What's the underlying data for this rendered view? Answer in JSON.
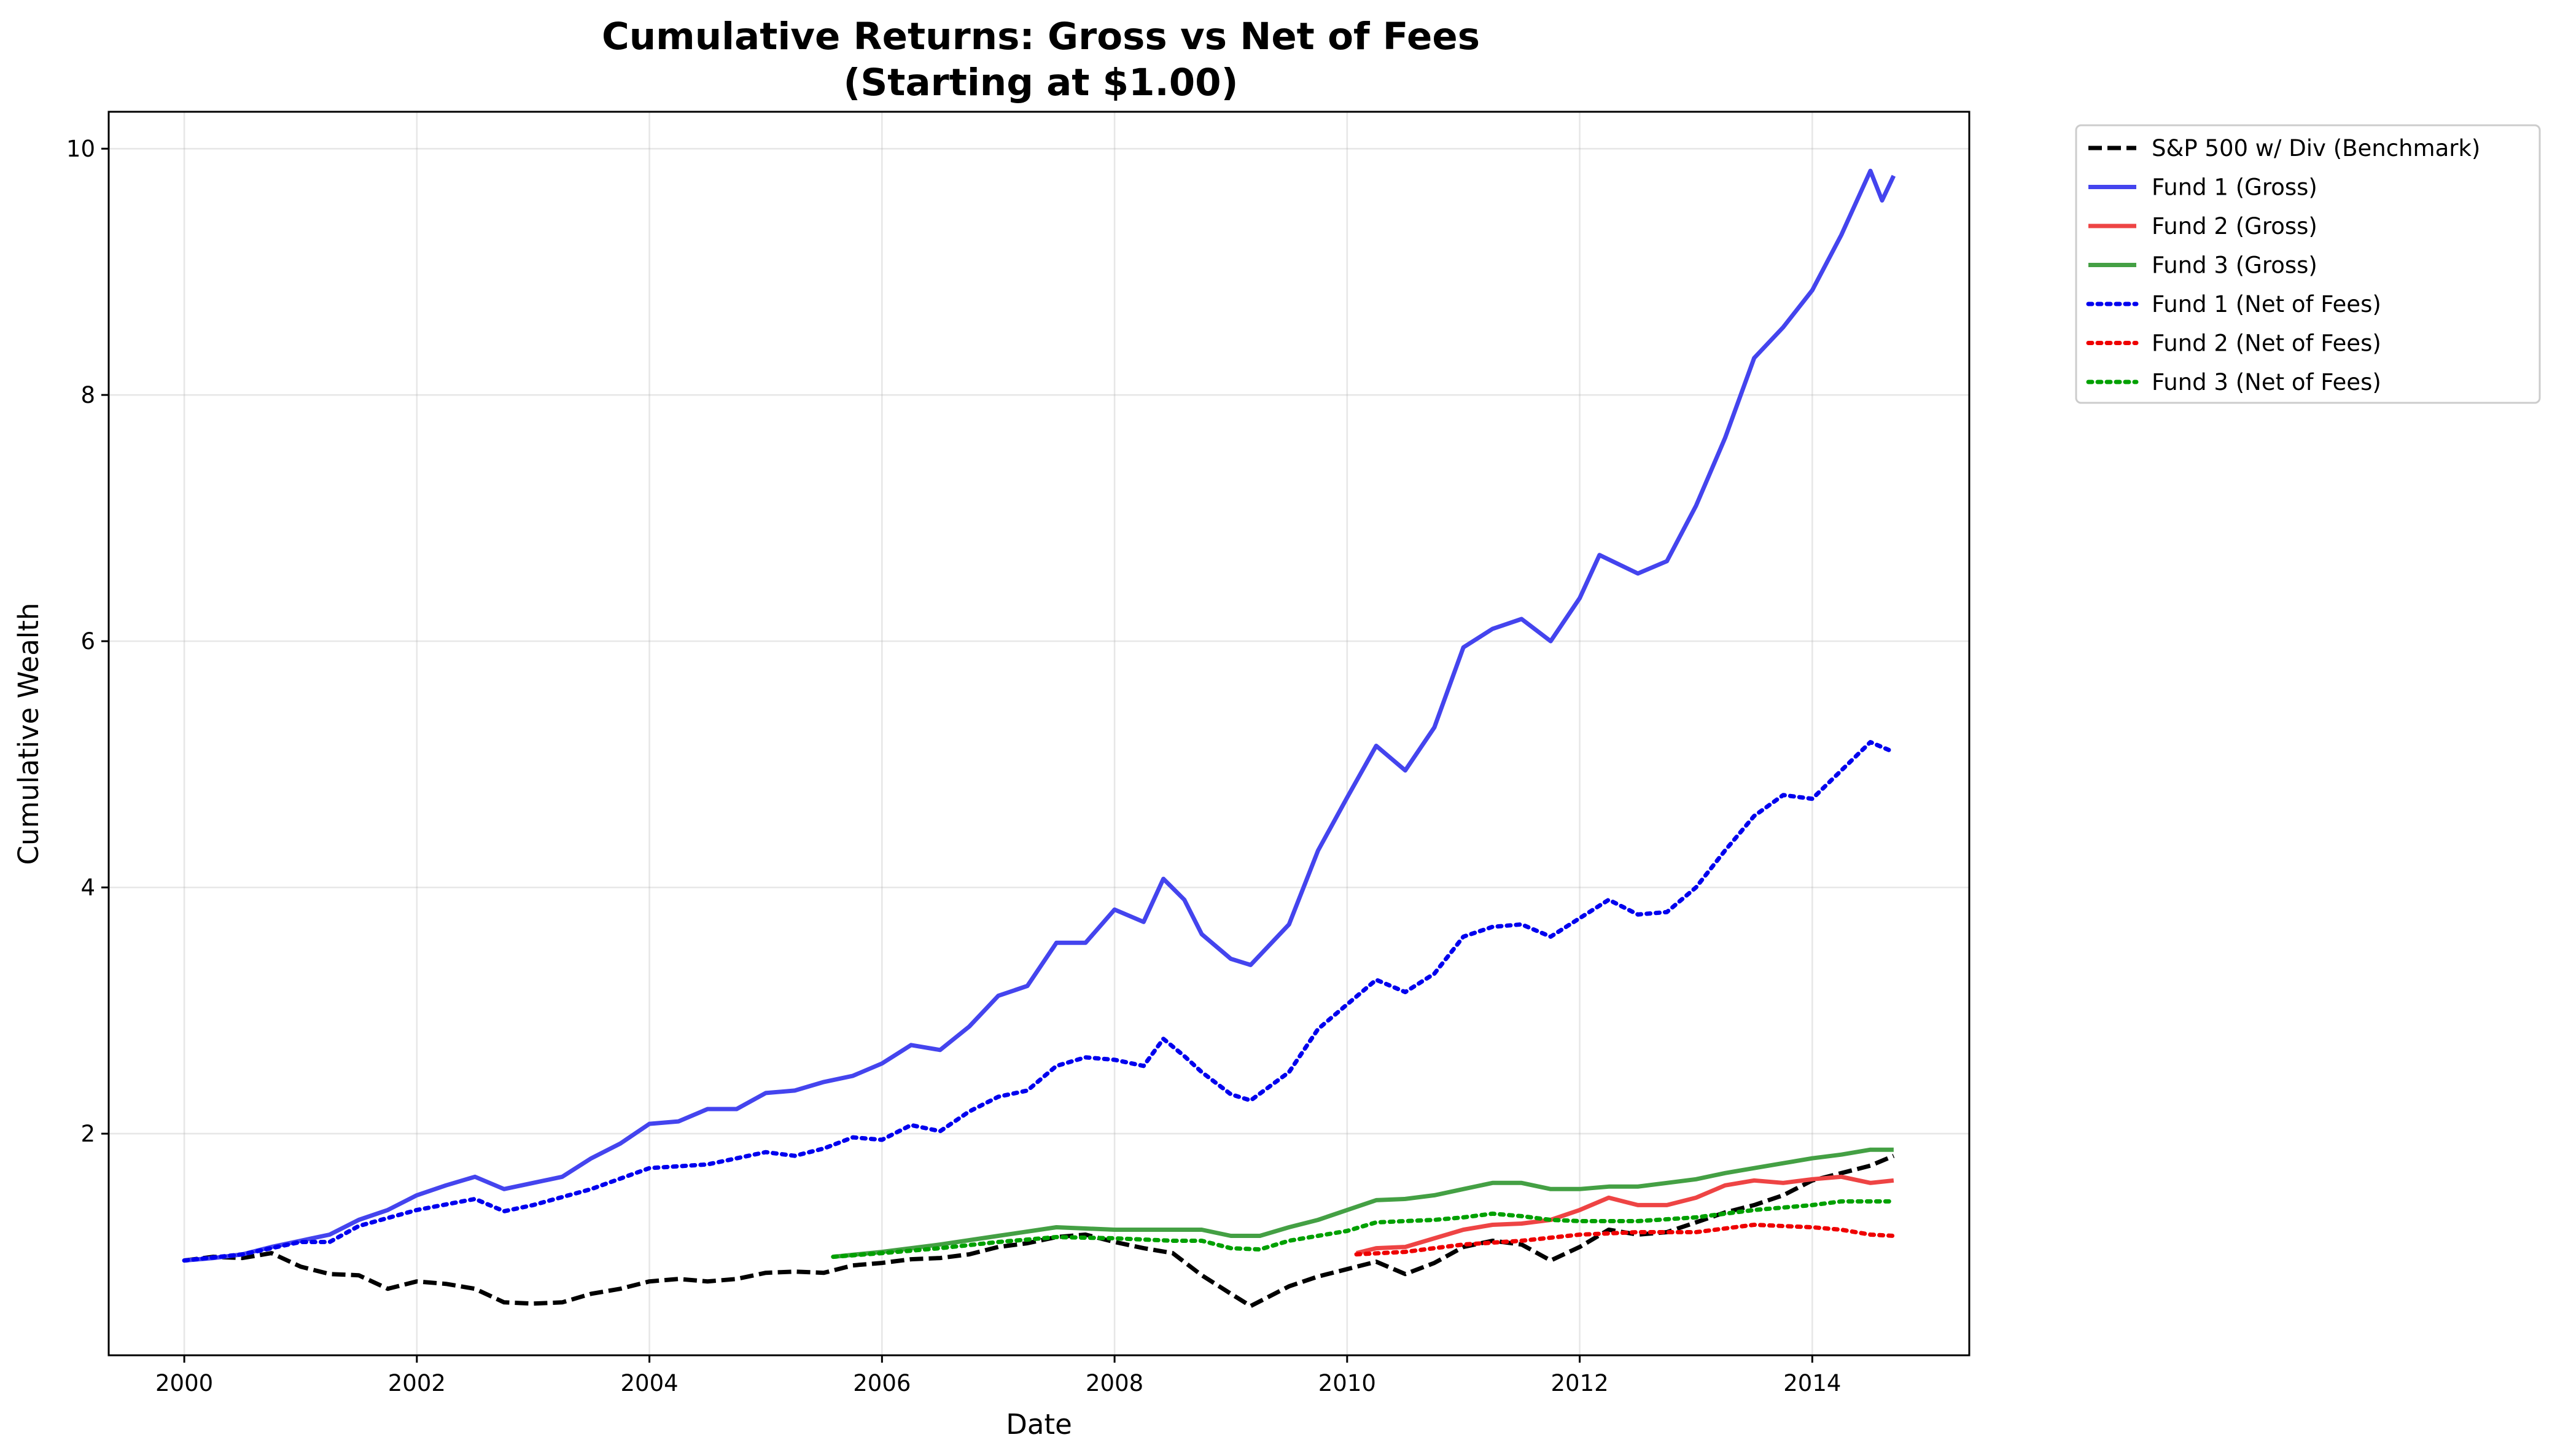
{
  "chart_data": {
    "type": "line",
    "title": [
      "Cumulative Returns: Gross vs Net of Fees",
      "(Starting at $1.00)"
    ],
    "xlabel": "Date",
    "ylabel": "Cumulative Wealth",
    "xlim": [
      1999.35,
      2015.35
    ],
    "ylim": [
      0.2,
      10.3
    ],
    "xticks": [
      {
        "value": 2000,
        "label": "2000"
      },
      {
        "value": 2002,
        "label": "2002"
      },
      {
        "value": 2004,
        "label": "2004"
      },
      {
        "value": 2006,
        "label": "2006"
      },
      {
        "value": 2008,
        "label": "2008"
      },
      {
        "value": 2010,
        "label": "2010"
      },
      {
        "value": 2012,
        "label": "2012"
      },
      {
        "value": 2014,
        "label": "2014"
      }
    ],
    "yticks": [
      {
        "value": 2,
        "label": "2"
      },
      {
        "value": 4,
        "label": "4"
      },
      {
        "value": 6,
        "label": "6"
      },
      {
        "value": 8,
        "label": "8"
      },
      {
        "value": 10,
        "label": "10"
      }
    ],
    "grid": true,
    "legend_position": "outside-top-right",
    "series": [
      {
        "name": "S&P 500 w/ Div (Benchmark)",
        "color": "#000000",
        "style": "dashed",
        "points": [
          [
            2000.0,
            0.97
          ],
          [
            2000.25,
            1.0
          ],
          [
            2000.5,
            0.99
          ],
          [
            2000.75,
            1.03
          ],
          [
            2001.0,
            0.92
          ],
          [
            2001.25,
            0.86
          ],
          [
            2001.5,
            0.85
          ],
          [
            2001.75,
            0.74
          ],
          [
            2002.0,
            0.8
          ],
          [
            2002.25,
            0.78
          ],
          [
            2002.5,
            0.74
          ],
          [
            2002.75,
            0.63
          ],
          [
            2003.0,
            0.62
          ],
          [
            2003.25,
            0.63
          ],
          [
            2003.5,
            0.7
          ],
          [
            2003.75,
            0.74
          ],
          [
            2004.0,
            0.8
          ],
          [
            2004.25,
            0.82
          ],
          [
            2004.5,
            0.8
          ],
          [
            2004.75,
            0.82
          ],
          [
            2005.0,
            0.87
          ],
          [
            2005.25,
            0.88
          ],
          [
            2005.5,
            0.87
          ],
          [
            2005.75,
            0.93
          ],
          [
            2006.0,
            0.95
          ],
          [
            2006.25,
            0.98
          ],
          [
            2006.5,
            0.99
          ],
          [
            2006.75,
            1.02
          ],
          [
            2007.0,
            1.08
          ],
          [
            2007.25,
            1.11
          ],
          [
            2007.5,
            1.16
          ],
          [
            2007.75,
            1.18
          ],
          [
            2008.0,
            1.12
          ],
          [
            2008.25,
            1.07
          ],
          [
            2008.5,
            1.03
          ],
          [
            2008.75,
            0.85
          ],
          [
            2009.0,
            0.7
          ],
          [
            2009.17,
            0.6
          ],
          [
            2009.5,
            0.76
          ],
          [
            2009.75,
            0.84
          ],
          [
            2010.0,
            0.9
          ],
          [
            2010.25,
            0.96
          ],
          [
            2010.5,
            0.86
          ],
          [
            2010.75,
            0.95
          ],
          [
            2011.0,
            1.08
          ],
          [
            2011.25,
            1.13
          ],
          [
            2011.5,
            1.1
          ],
          [
            2011.75,
            0.97
          ],
          [
            2012.0,
            1.08
          ],
          [
            2012.25,
            1.22
          ],
          [
            2012.5,
            1.18
          ],
          [
            2012.75,
            1.2
          ],
          [
            2013.0,
            1.28
          ],
          [
            2013.25,
            1.36
          ],
          [
            2013.5,
            1.42
          ],
          [
            2013.75,
            1.5
          ],
          [
            2014.0,
            1.62
          ],
          [
            2014.25,
            1.68
          ],
          [
            2014.5,
            1.74
          ],
          [
            2014.7,
            1.82
          ]
        ]
      },
      {
        "name": "Fund 1 (Gross)",
        "color": "#4444ee",
        "style": "solid",
        "points": [
          [
            2000.0,
            0.97
          ],
          [
            2000.25,
            0.99
          ],
          [
            2000.5,
            1.02
          ],
          [
            2000.75,
            1.08
          ],
          [
            2001.0,
            1.13
          ],
          [
            2001.25,
            1.18
          ],
          [
            2001.5,
            1.3
          ],
          [
            2001.75,
            1.38
          ],
          [
            2002.0,
            1.5
          ],
          [
            2002.25,
            1.58
          ],
          [
            2002.5,
            1.65
          ],
          [
            2002.75,
            1.55
          ],
          [
            2003.0,
            1.6
          ],
          [
            2003.25,
            1.65
          ],
          [
            2003.5,
            1.8
          ],
          [
            2003.75,
            1.92
          ],
          [
            2004.0,
            2.08
          ],
          [
            2004.25,
            2.1
          ],
          [
            2004.5,
            2.2
          ],
          [
            2004.75,
            2.2
          ],
          [
            2005.0,
            2.33
          ],
          [
            2005.25,
            2.35
          ],
          [
            2005.5,
            2.42
          ],
          [
            2005.75,
            2.47
          ],
          [
            2006.0,
            2.57
          ],
          [
            2006.25,
            2.72
          ],
          [
            2006.5,
            2.68
          ],
          [
            2006.75,
            2.87
          ],
          [
            2007.0,
            3.12
          ],
          [
            2007.25,
            3.2
          ],
          [
            2007.5,
            3.55
          ],
          [
            2007.75,
            3.55
          ],
          [
            2008.0,
            3.82
          ],
          [
            2008.25,
            3.72
          ],
          [
            2008.42,
            4.07
          ],
          [
            2008.6,
            3.9
          ],
          [
            2008.75,
            3.62
          ],
          [
            2009.0,
            3.42
          ],
          [
            2009.17,
            3.37
          ],
          [
            2009.5,
            3.7
          ],
          [
            2009.75,
            4.3
          ],
          [
            2010.0,
            4.73
          ],
          [
            2010.25,
            5.15
          ],
          [
            2010.5,
            4.95
          ],
          [
            2010.75,
            5.3
          ],
          [
            2011.0,
            5.95
          ],
          [
            2011.25,
            6.1
          ],
          [
            2011.5,
            6.18
          ],
          [
            2011.75,
            6.0
          ],
          [
            2012.0,
            6.35
          ],
          [
            2012.17,
            6.7
          ],
          [
            2012.5,
            6.55
          ],
          [
            2012.75,
            6.65
          ],
          [
            2013.0,
            7.1
          ],
          [
            2013.25,
            7.65
          ],
          [
            2013.5,
            8.3
          ],
          [
            2013.75,
            8.55
          ],
          [
            2014.0,
            8.85
          ],
          [
            2014.25,
            9.3
          ],
          [
            2014.5,
            9.82
          ],
          [
            2014.6,
            9.58
          ],
          [
            2014.7,
            9.78
          ]
        ]
      },
      {
        "name": "Fund 2 (Gross)",
        "color": "#ee4444",
        "style": "solid",
        "points": [
          [
            2010.08,
            1.03
          ],
          [
            2010.25,
            1.07
          ],
          [
            2010.5,
            1.08
          ],
          [
            2010.75,
            1.15
          ],
          [
            2011.0,
            1.22
          ],
          [
            2011.25,
            1.26
          ],
          [
            2011.5,
            1.27
          ],
          [
            2011.75,
            1.3
          ],
          [
            2012.0,
            1.38
          ],
          [
            2012.25,
            1.48
          ],
          [
            2012.5,
            1.42
          ],
          [
            2012.75,
            1.42
          ],
          [
            2013.0,
            1.48
          ],
          [
            2013.25,
            1.58
          ],
          [
            2013.5,
            1.62
          ],
          [
            2013.75,
            1.6
          ],
          [
            2014.0,
            1.63
          ],
          [
            2014.25,
            1.65
          ],
          [
            2014.5,
            1.6
          ],
          [
            2014.7,
            1.62
          ]
        ]
      },
      {
        "name": "Fund 3 (Gross)",
        "color": "#44a044",
        "style": "solid",
        "points": [
          [
            2005.58,
            1.0
          ],
          [
            2006.0,
            1.04
          ],
          [
            2006.5,
            1.1
          ],
          [
            2007.0,
            1.17
          ],
          [
            2007.5,
            1.24
          ],
          [
            2008.0,
            1.22
          ],
          [
            2008.5,
            1.22
          ],
          [
            2008.75,
            1.22
          ],
          [
            2009.0,
            1.17
          ],
          [
            2009.25,
            1.17
          ],
          [
            2009.5,
            1.24
          ],
          [
            2009.75,
            1.3
          ],
          [
            2010.0,
            1.38
          ],
          [
            2010.25,
            1.46
          ],
          [
            2010.5,
            1.47
          ],
          [
            2010.75,
            1.5
          ],
          [
            2011.0,
            1.55
          ],
          [
            2011.25,
            1.6
          ],
          [
            2011.5,
            1.6
          ],
          [
            2011.75,
            1.55
          ],
          [
            2012.0,
            1.55
          ],
          [
            2012.25,
            1.57
          ],
          [
            2012.5,
            1.57
          ],
          [
            2012.75,
            1.6
          ],
          [
            2013.0,
            1.63
          ],
          [
            2013.25,
            1.68
          ],
          [
            2013.5,
            1.72
          ],
          [
            2013.75,
            1.76
          ],
          [
            2014.0,
            1.8
          ],
          [
            2014.25,
            1.83
          ],
          [
            2014.5,
            1.87
          ],
          [
            2014.7,
            1.87
          ]
        ]
      },
      {
        "name": "Fund 1 (Net of Fees)",
        "color": "#0000ee",
        "style": "dotted",
        "points": [
          [
            2000.0,
            0.97
          ],
          [
            2000.5,
            1.02
          ],
          [
            2001.0,
            1.12
          ],
          [
            2001.25,
            1.12
          ],
          [
            2001.5,
            1.25
          ],
          [
            2002.0,
            1.38
          ],
          [
            2002.5,
            1.47
          ],
          [
            2002.75,
            1.37
          ],
          [
            2003.0,
            1.42
          ],
          [
            2003.5,
            1.55
          ],
          [
            2004.0,
            1.72
          ],
          [
            2004.5,
            1.75
          ],
          [
            2005.0,
            1.85
          ],
          [
            2005.25,
            1.82
          ],
          [
            2005.5,
            1.88
          ],
          [
            2005.75,
            1.97
          ],
          [
            2006.0,
            1.95
          ],
          [
            2006.25,
            2.07
          ],
          [
            2006.5,
            2.02
          ],
          [
            2006.75,
            2.18
          ],
          [
            2007.0,
            2.3
          ],
          [
            2007.25,
            2.35
          ],
          [
            2007.5,
            2.55
          ],
          [
            2007.75,
            2.62
          ],
          [
            2008.0,
            2.6
          ],
          [
            2008.25,
            2.55
          ],
          [
            2008.42,
            2.77
          ],
          [
            2008.6,
            2.63
          ],
          [
            2008.75,
            2.5
          ],
          [
            2009.0,
            2.32
          ],
          [
            2009.17,
            2.27
          ],
          [
            2009.5,
            2.5
          ],
          [
            2009.75,
            2.85
          ],
          [
            2010.0,
            3.05
          ],
          [
            2010.25,
            3.25
          ],
          [
            2010.5,
            3.15
          ],
          [
            2010.75,
            3.3
          ],
          [
            2011.0,
            3.6
          ],
          [
            2011.25,
            3.68
          ],
          [
            2011.5,
            3.7
          ],
          [
            2011.75,
            3.6
          ],
          [
            2012.0,
            3.75
          ],
          [
            2012.25,
            3.9
          ],
          [
            2012.5,
            3.78
          ],
          [
            2012.75,
            3.8
          ],
          [
            2013.0,
            4.0
          ],
          [
            2013.25,
            4.3
          ],
          [
            2013.5,
            4.58
          ],
          [
            2013.75,
            4.75
          ],
          [
            2014.0,
            4.72
          ],
          [
            2014.25,
            4.95
          ],
          [
            2014.5,
            5.18
          ],
          [
            2014.7,
            5.1
          ]
        ]
      },
      {
        "name": "Fund 2 (Net of Fees)",
        "color": "#ee0000",
        "style": "dotted",
        "points": [
          [
            2010.08,
            1.02
          ],
          [
            2010.5,
            1.04
          ],
          [
            2011.0,
            1.1
          ],
          [
            2011.5,
            1.13
          ],
          [
            2012.0,
            1.18
          ],
          [
            2012.5,
            1.2
          ],
          [
            2013.0,
            1.2
          ],
          [
            2013.5,
            1.26
          ],
          [
            2013.75,
            1.25
          ],
          [
            2014.0,
            1.24
          ],
          [
            2014.25,
            1.22
          ],
          [
            2014.5,
            1.18
          ],
          [
            2014.7,
            1.17
          ]
        ]
      },
      {
        "name": "Fund 3 (Net of Fees)",
        "color": "#00a000",
        "style": "dotted",
        "points": [
          [
            2005.58,
            1.0
          ],
          [
            2006.0,
            1.03
          ],
          [
            2006.5,
            1.07
          ],
          [
            2007.0,
            1.12
          ],
          [
            2007.5,
            1.16
          ],
          [
            2008.0,
            1.15
          ],
          [
            2008.5,
            1.13
          ],
          [
            2008.75,
            1.13
          ],
          [
            2009.0,
            1.07
          ],
          [
            2009.25,
            1.06
          ],
          [
            2009.5,
            1.13
          ],
          [
            2009.75,
            1.17
          ],
          [
            2010.0,
            1.21
          ],
          [
            2010.25,
            1.28
          ],
          [
            2010.5,
            1.29
          ],
          [
            2010.75,
            1.3
          ],
          [
            2011.0,
            1.32
          ],
          [
            2011.25,
            1.35
          ],
          [
            2011.5,
            1.33
          ],
          [
            2011.75,
            1.3
          ],
          [
            2012.0,
            1.29
          ],
          [
            2012.5,
            1.29
          ],
          [
            2013.0,
            1.32
          ],
          [
            2013.5,
            1.38
          ],
          [
            2014.0,
            1.42
          ],
          [
            2014.25,
            1.45
          ],
          [
            2014.5,
            1.45
          ],
          [
            2014.7,
            1.45
          ]
        ]
      }
    ]
  }
}
